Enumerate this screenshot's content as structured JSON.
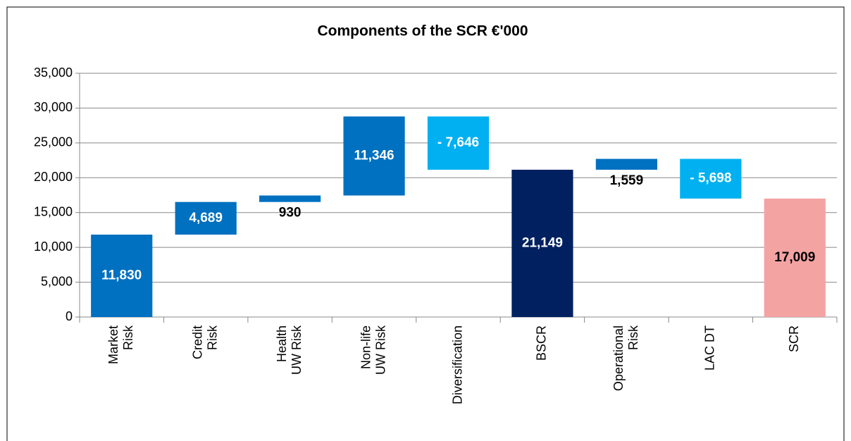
{
  "chart_data": {
    "type": "waterfall",
    "title": "Components of the SCR €'000",
    "categories": [
      "Market\nRisk",
      "Credit\nRisk",
      "Health\nUW Risk",
      "Non-life\nUW Risk",
      "Diversification",
      "BSCR",
      "Operational\nRisk",
      "LAC DT",
      "SCR"
    ],
    "values": [
      11830,
      4689,
      930,
      11346,
      -7646,
      21149,
      1559,
      -5698,
      17009
    ],
    "value_labels": [
      "11,830",
      "4,689",
      "930",
      "11,346",
      "- 7,646",
      "21,149",
      "1,559",
      "- 5,698",
      "17,009"
    ],
    "totals": [
      "BSCR",
      "SCR"
    ],
    "colors": [
      "#0070c0",
      "#0070c0",
      "#0070c0",
      "#0070c0",
      "#00b0f0",
      "#002060",
      "#0070c0",
      "#00b0f0",
      "#f4a3a3"
    ],
    "label_colors": [
      "#ffffff",
      "#ffffff",
      "#000000",
      "#ffffff",
      "#ffffff",
      "#ffffff",
      "#000000",
      "#ffffff",
      "#000000"
    ],
    "ylim": [
      0,
      35000
    ],
    "yticks": [
      {
        "value": 0,
        "label": "0"
      },
      {
        "value": 5000,
        "label": "5,000"
      },
      {
        "value": 10000,
        "label": "10,000"
      },
      {
        "value": 15000,
        "label": "15,000"
      },
      {
        "value": 20000,
        "label": "20,000"
      },
      {
        "value": 25000,
        "label": "25,000"
      },
      {
        "value": 30000,
        "label": "30,000"
      },
      {
        "value": 35000,
        "label": "35,000"
      }
    ],
    "grid": true
  }
}
